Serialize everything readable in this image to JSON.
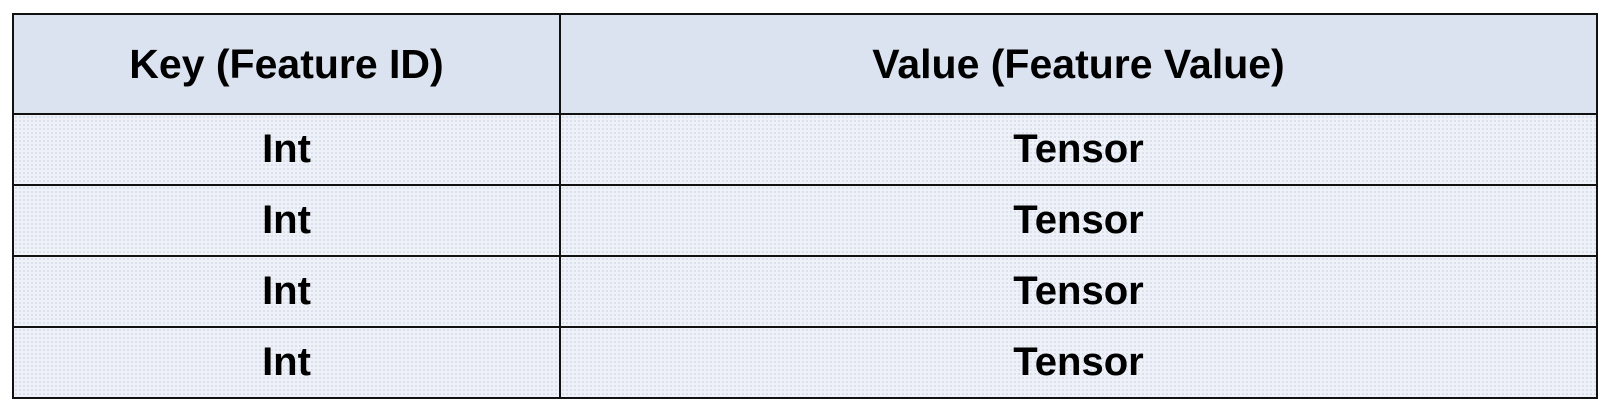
{
  "table": {
    "headers": [
      "Key (Feature ID)",
      "Value (Feature Value)"
    ],
    "rows": [
      [
        "Int",
        "Tensor"
      ],
      [
        "Int",
        "Tensor"
      ],
      [
        "Int",
        "Tensor"
      ],
      [
        "Int",
        "Tensor"
      ]
    ]
  },
  "colors": {
    "header_background": "#dbe3f1",
    "body_background": "#eef2f8",
    "border": "#111111",
    "text": "#000000"
  }
}
